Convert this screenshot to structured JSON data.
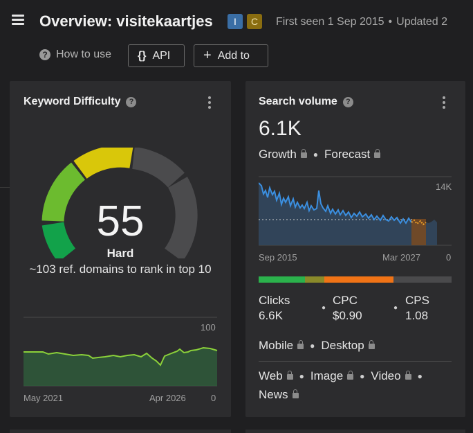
{
  "header": {
    "title": "Overview: visitekaartjes",
    "badges": [
      "I",
      "C"
    ],
    "first_seen": "First seen 1 Sep 2015",
    "updated": "Updated 2",
    "how_to_use": "How to use",
    "api_label": "API",
    "add_label": "Add to"
  },
  "keyword_difficulty": {
    "title": "Keyword Difficulty",
    "score": "55",
    "level": "Hard",
    "note": "~103 ref. domains to rank in top 10",
    "chart_axis_max": "100",
    "chart_axis_min": "0",
    "chart_start": "May 2021",
    "chart_end": "Apr 2026",
    "gauge_value": 55,
    "colors": {
      "green": "#2bb24c",
      "lime": "#7ac142",
      "yellow": "#d4c20a",
      "gray": "#4a4a4c"
    }
  },
  "search_volume": {
    "title": "Search volume",
    "value": "6.1K",
    "growth": "Growth",
    "forecast": "Forecast",
    "axis_max": "14K",
    "axis_min": "0",
    "start": "Sep 2015",
    "end": "Mar 2027",
    "clicks_label": "Clicks",
    "clicks_value": "6.6K",
    "cpc_label": "CPC",
    "cpc_value": "$0.90",
    "cps_label": "CPS",
    "cps_value": "1.08",
    "mobile": "Mobile",
    "desktop": "Desktop",
    "web": "Web",
    "image": "Image",
    "video": "Video",
    "news": "News",
    "click_share": [
      {
        "color": "#2bb24c",
        "share": 0.24
      },
      {
        "color": "#8a8a2a",
        "share": 0.1
      },
      {
        "color": "#f07316",
        "share": 0.36
      },
      {
        "color": "#4a4a4c",
        "share": 0.3
      }
    ]
  }
}
